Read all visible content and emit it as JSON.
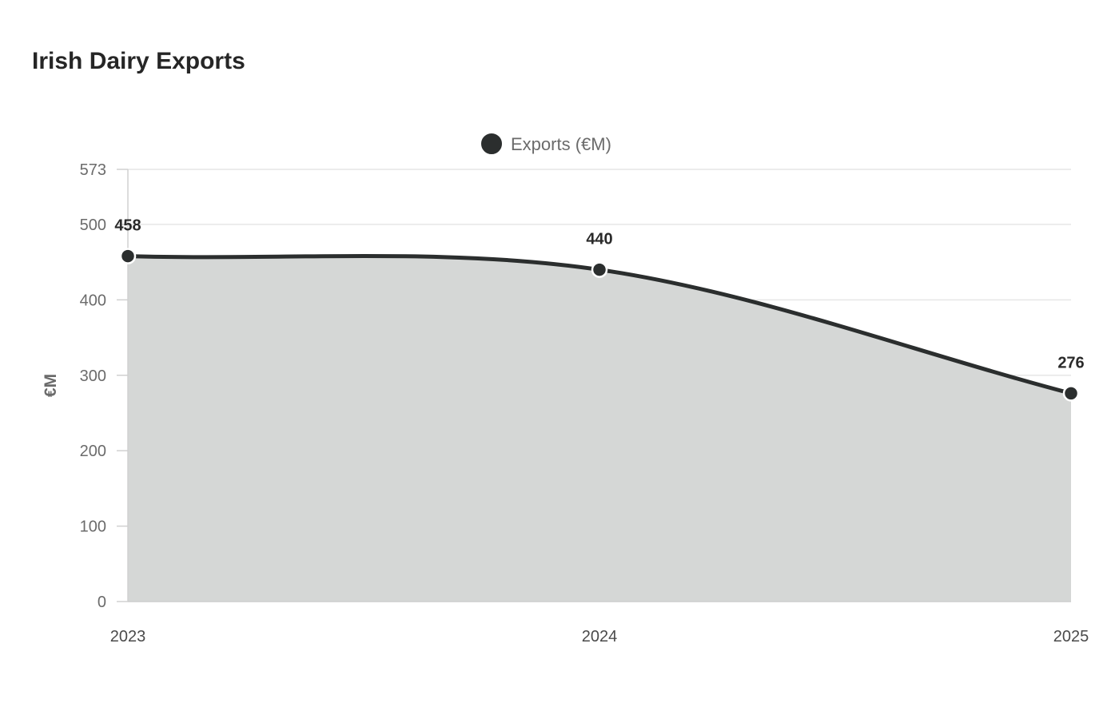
{
  "chart_data": {
    "type": "area",
    "title": "Irish Dairy Exports",
    "xlabel": "",
    "ylabel": "€M",
    "categories": [
      "2023",
      "2024",
      "2025"
    ],
    "series": [
      {
        "name": "Exports (€M)",
        "values": [
          458,
          440,
          276
        ],
        "color": "#2b2e2e",
        "fill": "#d5d7d6"
      }
    ],
    "ylim": [
      0,
      573
    ],
    "yticks": [
      0,
      100,
      200,
      300,
      400,
      500,
      573
    ],
    "grid": true,
    "legend": "top-center",
    "data_labels": true
  }
}
